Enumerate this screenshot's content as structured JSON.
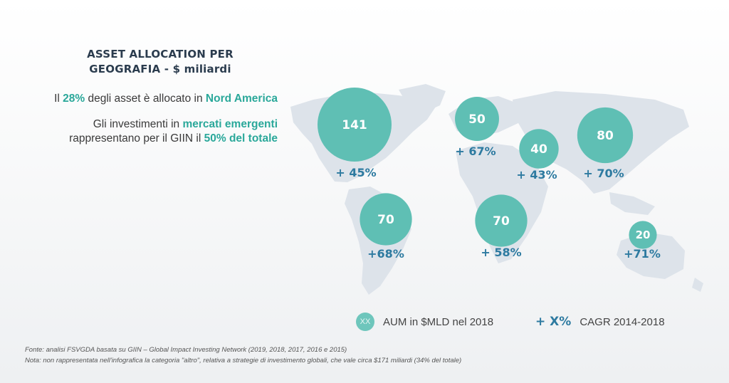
{
  "title_line1": "ASSET ALLOCATION PER",
  "title_line2": "GEOGRAFIA - $ miliardi",
  "lead1": {
    "pre": "Il ",
    "pct": "28%",
    "mid": " degli asset è allocato in ",
    "region": "Nord America"
  },
  "lead2": {
    "pre": "Gli investimenti in ",
    "emph": "mercati emergenti",
    "line3_pre": "rappresentano per il GIIN il ",
    "line3_emph": "50% del totale"
  },
  "legend": {
    "circle_text": "XX",
    "aum_label": "AUM in $MLD nel 2018",
    "cagr_symbol": "+ X%",
    "cagr_label": "CAGR 2014-2018"
  },
  "source": "Fonte: analisi FSVGDA basata su GIIN – Global Impact Investing Network (2019, 2018, 2017, 2016 e 2015)",
  "note": "Nota: non rappresentata nell'infografica la categoria \"altro\", relativa a strategie di investimento globali, che vale circa $171 miliardi (34% del totale)",
  "colors": {
    "bubble": "#5fbfb4",
    "cagr": "#2d7aa0",
    "highlight": "#2aa89a",
    "map": "#dde3ea"
  },
  "chart_data": {
    "type": "bubble-map",
    "regions": [
      {
        "aum": 141,
        "cagr": "+ 45%"
      },
      {
        "aum": 50,
        "cagr": "+ 67%"
      },
      {
        "aum": 40,
        "cagr": "+ 43%"
      },
      {
        "aum": 80,
        "cagr": "+ 70%"
      },
      {
        "aum": 70,
        "cagr": "+68%"
      },
      {
        "aum": 70,
        "cagr": "+ 58%"
      },
      {
        "aum": 20,
        "cagr": "+71%"
      }
    ]
  }
}
